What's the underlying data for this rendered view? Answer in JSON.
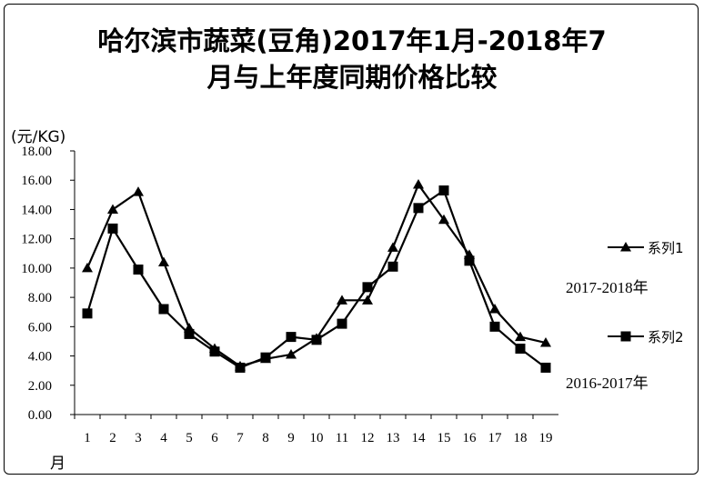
{
  "chart_data": {
    "type": "line",
    "title_line1": "哈尔滨市蔬菜(豆角)2017年1月-2018年7",
    "title_line2": "月与上年度同期价格比较",
    "ylabel": "(元/KG)",
    "xlabel": "月",
    "ylim": [
      0,
      18
    ],
    "y_tick_step": 2,
    "y_tick_labels": [
      "0.00",
      "2.00",
      "4.00",
      "6.00",
      "8.00",
      "10.00",
      "12.00",
      "14.00",
      "16.00",
      "18.00"
    ],
    "categories": [
      "1",
      "2",
      "3",
      "4",
      "5",
      "6",
      "7",
      "8",
      "9",
      "10",
      "11",
      "12",
      "13",
      "14",
      "15",
      "16",
      "17",
      "18",
      "19"
    ],
    "grid": false,
    "legend_position": "right",
    "series": [
      {
        "name": "系列1",
        "caption": "2017-2018年",
        "marker": "triangle",
        "values": [
          10.0,
          14.0,
          15.2,
          10.4,
          5.9,
          4.5,
          3.3,
          3.8,
          4.1,
          5.2,
          7.8,
          7.8,
          11.4,
          15.7,
          13.3,
          10.9,
          7.2,
          5.3,
          4.9
        ]
      },
      {
        "name": "系列2",
        "caption": "2016-2017年",
        "marker": "square",
        "values": [
          6.9,
          12.7,
          9.9,
          7.2,
          5.5,
          4.3,
          3.2,
          3.9,
          5.3,
          5.1,
          6.2,
          8.7,
          10.1,
          14.1,
          15.3,
          10.5,
          6.0,
          4.5,
          3.2
        ]
      }
    ]
  }
}
